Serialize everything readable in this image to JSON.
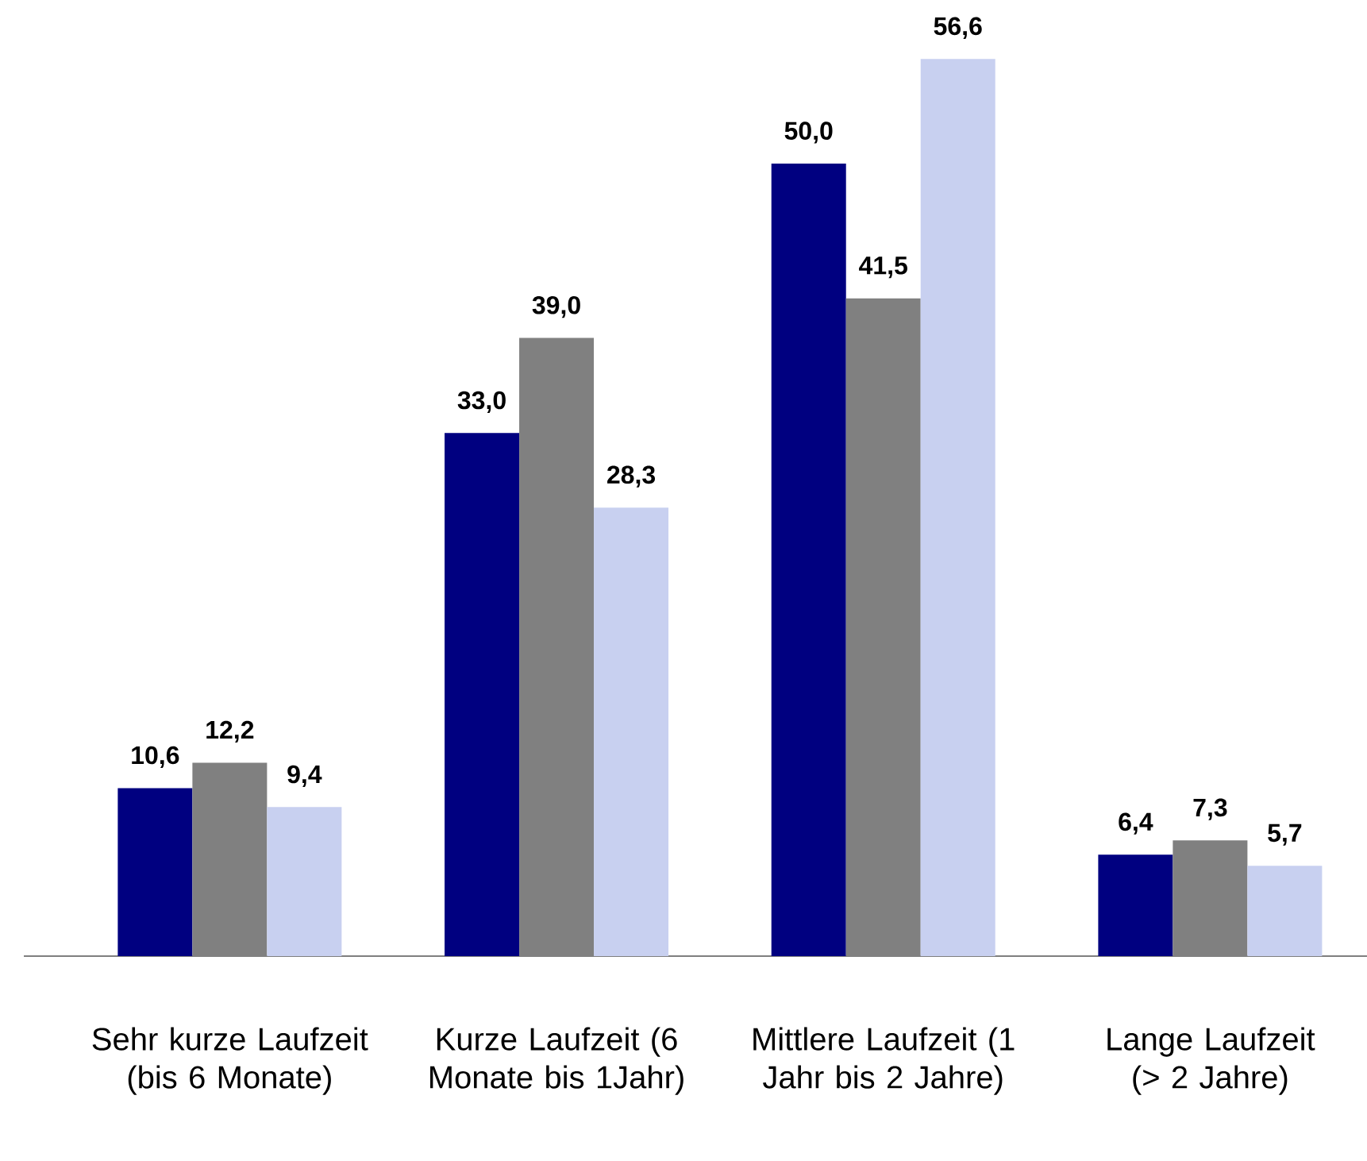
{
  "chart_data": {
    "type": "bar",
    "categories": [
      "Sehr kurze Laufzeit (bis 6 Monate)",
      "Kurze Laufzeit (6 Monate bis 1Jahr)",
      "Mittlere Laufzeit (1 Jahr bis 2 Jahre)",
      "Lange Laufzeit (> 2 Jahre)"
    ],
    "series": [
      {
        "color": "#000080",
        "values": [
          10.6,
          33.0,
          50.0,
          6.4
        ],
        "value_labels": [
          "10,6",
          "33,0",
          "50,0",
          "6,4"
        ]
      },
      {
        "color": "#808080",
        "values": [
          12.2,
          39.0,
          41.5,
          7.3
        ],
        "value_labels": [
          "12,2",
          "39,0",
          "41,5",
          "7,3"
        ]
      },
      {
        "color": "#c8d0f0",
        "values": [
          9.4,
          28.3,
          56.6,
          5.7
        ],
        "value_labels": [
          "9,4",
          "28,3",
          "56,6",
          "5,7"
        ]
      }
    ]
  }
}
